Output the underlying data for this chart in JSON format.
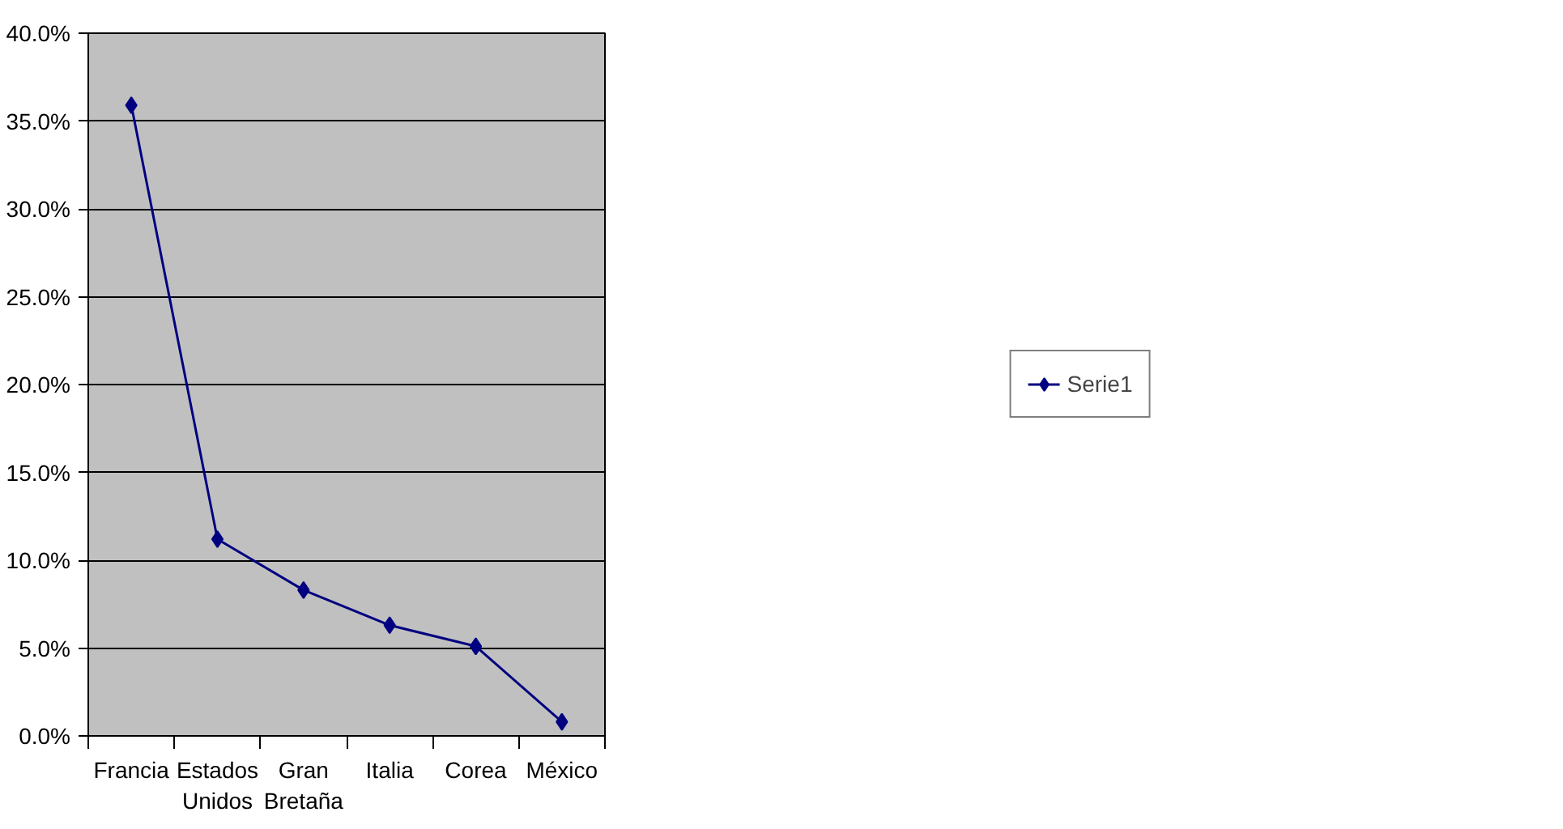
{
  "chart_data": {
    "type": "line",
    "categories": [
      "Francia",
      "Estados Unidos",
      "Gran Bretaña",
      "Italia",
      "Corea",
      "México"
    ],
    "series": [
      {
        "name": "Serie1",
        "color": "#000080",
        "values": [
          35.9,
          11.2,
          8.3,
          6.3,
          5.1,
          0.8
        ]
      }
    ],
    "ylim": [
      0,
      40
    ],
    "yticks": [
      {
        "value": 0,
        "label": "0.0%"
      },
      {
        "value": 5,
        "label": "5.0%"
      },
      {
        "value": 10,
        "label": "10.0%"
      },
      {
        "value": 15,
        "label": "15.0%"
      },
      {
        "value": 20,
        "label": "20.0%"
      },
      {
        "value": 25,
        "label": "25.0%"
      },
      {
        "value": 30,
        "label": "30.0%"
      },
      {
        "value": 35,
        "label": "35.0%"
      },
      {
        "value": 40,
        "label": "40.0%"
      }
    ],
    "grid": "y",
    "legend": "right",
    "marker": "diamond",
    "line_style": "solid"
  }
}
